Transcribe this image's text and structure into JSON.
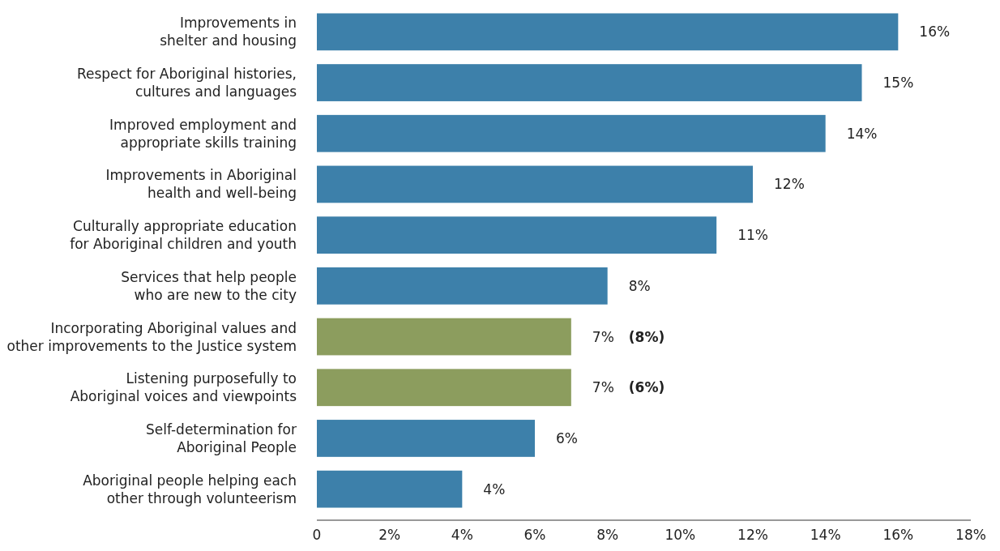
{
  "chart_data": {
    "type": "bar",
    "orientation": "horizontal",
    "categories": [
      "Improvements in\nshelter and housing",
      "Respect for Aboriginal histories,\ncultures and languages",
      "Improved employment and\nappropriate skills training",
      "Improvements in Aboriginal\nhealth and well-being",
      "Culturally appropriate education\nfor Aboriginal children and youth",
      "Services that help people\nwho are new to the city",
      "Incorporating Aboriginal values and\nother improvements to the Justice system",
      "Listening purposefully to\nAboriginal voices and viewpoints",
      "Self-determination for\nAboriginal People",
      "Aboriginal people helping each\nother through volunteerism"
    ],
    "values": [
      16,
      15,
      14,
      12,
      11,
      8,
      7,
      7,
      6,
      4
    ],
    "colors": [
      "#3d80aa",
      "#3d80aa",
      "#3d80aa",
      "#3d80aa",
      "#3d80aa",
      "#3d80aa",
      "#8c9d5e",
      "#8c9d5e",
      "#3d80aa",
      "#3d80aa"
    ],
    "value_labels": [
      "16%",
      "15%",
      "14%",
      "12%",
      "11%",
      "8%",
      "7% (8%)",
      "7% (6%)",
      "6%",
      "4%"
    ],
    "xlim": [
      0,
      18
    ],
    "xticks": [
      0,
      {
        "value": 2,
        "label": "2%"
      },
      {
        "value": 4,
        "label": "4%"
      },
      {
        "value": 6,
        "label": "6%"
      },
      {
        "value": 8,
        "label": "8%"
      },
      {
        "value": 10,
        "label": "10%"
      },
      {
        "value": 12,
        "label": "12%"
      },
      {
        "value": 14,
        "label": "14%"
      },
      {
        "value": 16,
        "label": "16%"
      },
      {
        "value": 18,
        "label": "18%"
      }
    ],
    "grid": false
  }
}
